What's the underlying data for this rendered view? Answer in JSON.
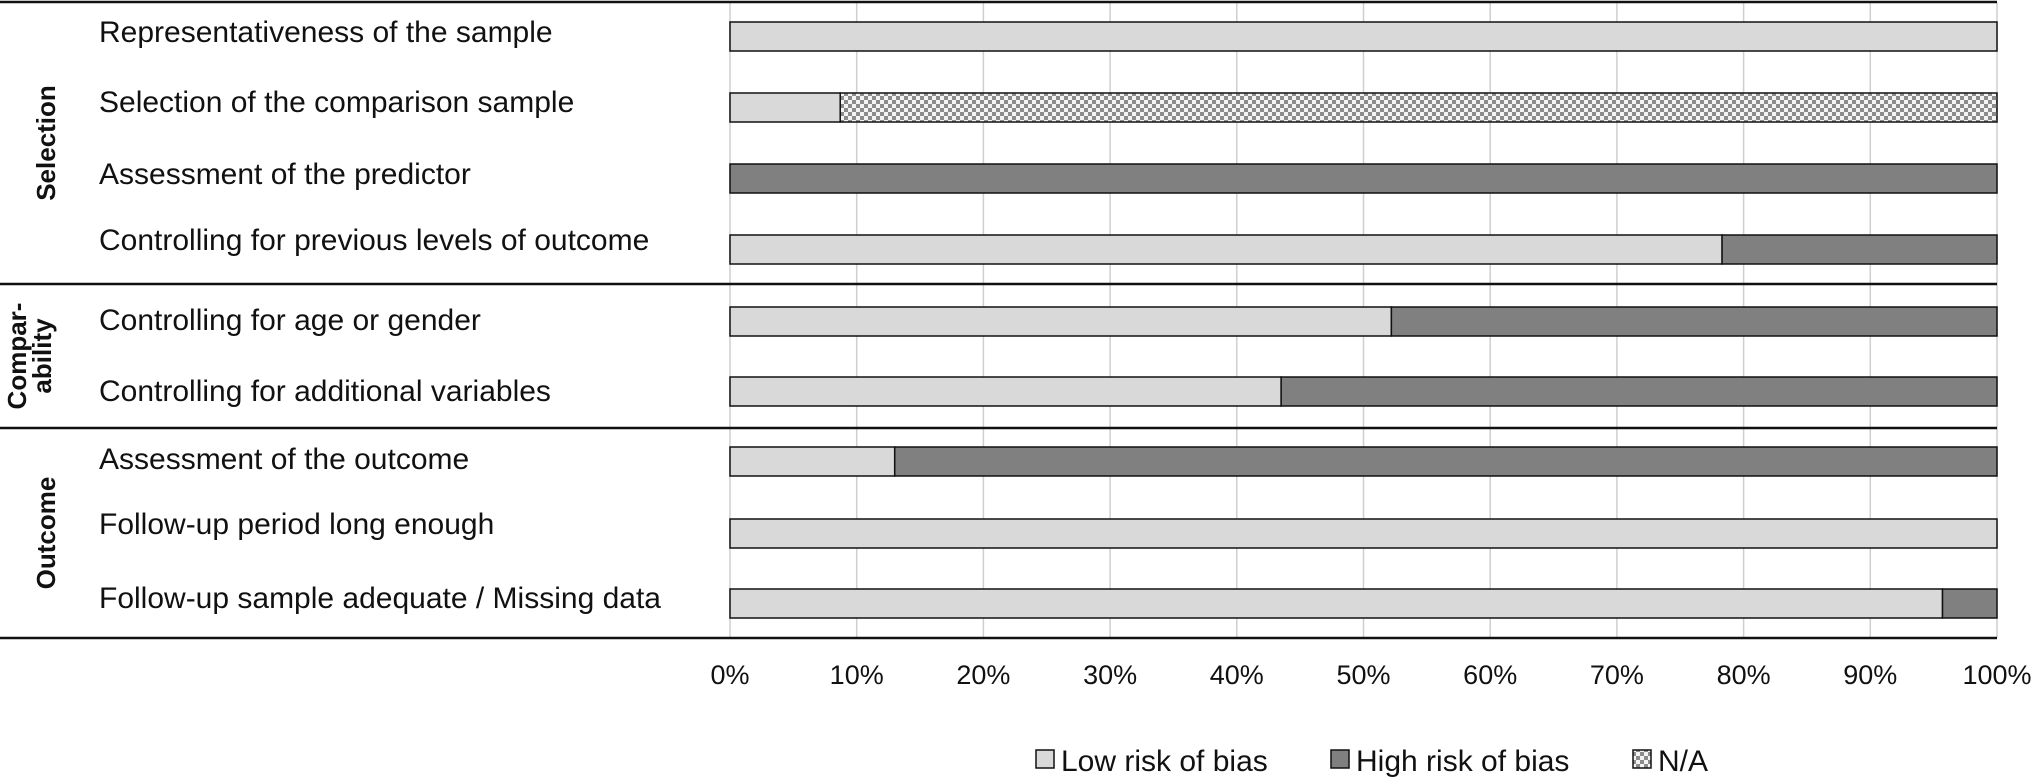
{
  "chart_data": {
    "type": "bar",
    "stacked": true,
    "orientation": "horizontal",
    "title": "",
    "xlabel": "",
    "ylabel": "",
    "xlim": [
      0,
      100
    ],
    "x_ticks": [
      "0%",
      "10%",
      "20%",
      "30%",
      "40%",
      "50%",
      "60%",
      "70%",
      "80%",
      "90%",
      "100%"
    ],
    "grid": "vertical",
    "legend_position": "bottom-center",
    "groups": [
      {
        "name": "Selection",
        "rows": [
          0,
          1,
          2,
          3
        ]
      },
      {
        "name": "Compar-\nability",
        "name_lines": [
          "Compar-",
          "ability"
        ],
        "rows": [
          4,
          5
        ]
      },
      {
        "name": "Outcome",
        "rows": [
          6,
          7,
          8
        ]
      }
    ],
    "categories": [
      "Representativeness of the sample",
      "Selection of the comparison sample",
      "Assessment of the predictor",
      "Controlling for previous levels of outcome",
      "Controlling for age or gender",
      "Controlling for additional variables",
      "Assessment of the outcome",
      "Follow-up period long enough",
      "Follow-up sample adequate / Missing data"
    ],
    "series": [
      {
        "name": "Low risk of bias",
        "color": "#d9d9d9",
        "pattern": "solid",
        "values": [
          100,
          8.7,
          0,
          78.3,
          52.2,
          43.5,
          13.0,
          100,
          95.7
        ]
      },
      {
        "name": "High risk of bias",
        "color": "#808080",
        "pattern": "solid",
        "values": [
          0,
          0,
          100,
          21.7,
          47.8,
          56.5,
          87.0,
          0,
          4.3
        ]
      },
      {
        "name": "N/A",
        "color": "#bfbfbf",
        "pattern": "checker",
        "values": [
          0,
          91.3,
          0,
          0,
          0,
          0,
          0,
          0,
          0
        ]
      }
    ]
  }
}
